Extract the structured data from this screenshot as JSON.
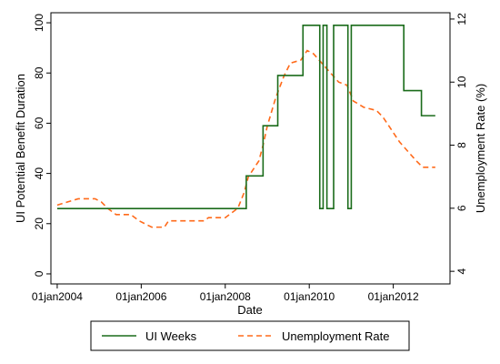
{
  "chart_data": {
    "type": "line",
    "title": "",
    "xlabel": "Date",
    "ylabel_left": "UI Potential Benefit Duration",
    "ylabel_right": "Unemployment Rate (%)",
    "x_ticks": [
      "01jan2004",
      "01jan2006",
      "01jan2008",
      "01jan2010",
      "01jan2012"
    ],
    "y_left_ticks": [
      "0",
      "20",
      "40",
      "60",
      "80",
      "100"
    ],
    "y_right_ticks": [
      "4",
      "6",
      "8",
      "10",
      "12"
    ],
    "x_range": [
      2004.0,
      2013.0
    ],
    "y_left_range": [
      0,
      100
    ],
    "y_right_range": [
      4,
      12
    ],
    "grid": false,
    "legend_position": "bottom",
    "series": [
      {
        "name": "UI Weeks",
        "axis": "left",
        "color": "#1a6b1a",
        "dash": "solid",
        "step": true,
        "points": [
          [
            2004.0,
            26
          ],
          [
            2008.5,
            26
          ],
          [
            2008.5,
            39
          ],
          [
            2008.9,
            39
          ],
          [
            2008.9,
            59
          ],
          [
            2009.25,
            59
          ],
          [
            2009.25,
            79
          ],
          [
            2009.85,
            79
          ],
          [
            2009.85,
            99
          ],
          [
            2010.25,
            99
          ],
          [
            2010.25,
            26
          ],
          [
            2010.33,
            26
          ],
          [
            2010.33,
            99
          ],
          [
            2010.42,
            99
          ],
          [
            2010.42,
            26
          ],
          [
            2010.58,
            26
          ],
          [
            2010.58,
            99
          ],
          [
            2010.92,
            99
          ],
          [
            2010.92,
            26
          ],
          [
            2011.0,
            26
          ],
          [
            2011.0,
            99
          ],
          [
            2012.25,
            99
          ],
          [
            2012.25,
            73
          ],
          [
            2012.67,
            73
          ],
          [
            2012.67,
            63
          ],
          [
            2013.0,
            63
          ]
        ]
      },
      {
        "name": "Unemployment Rate",
        "axis": "right",
        "color": "#ff6a1a",
        "dash": "dashed",
        "step": false,
        "points": [
          [
            2004.0,
            6.1
          ],
          [
            2004.25,
            6.2
          ],
          [
            2004.5,
            6.3
          ],
          [
            2004.9,
            6.3
          ],
          [
            2005.05,
            6.2
          ],
          [
            2005.2,
            6.0
          ],
          [
            2005.4,
            5.8
          ],
          [
            2005.75,
            5.8
          ],
          [
            2005.95,
            5.6
          ],
          [
            2006.25,
            5.4
          ],
          [
            2006.55,
            5.4
          ],
          [
            2006.65,
            5.6
          ],
          [
            2007.0,
            5.6
          ],
          [
            2007.5,
            5.6
          ],
          [
            2007.6,
            5.7
          ],
          [
            2008.0,
            5.7
          ],
          [
            2008.3,
            6.0
          ],
          [
            2008.45,
            6.5
          ],
          [
            2008.55,
            7.0
          ],
          [
            2008.8,
            7.5
          ],
          [
            2008.9,
            8.0
          ],
          [
            2009.0,
            8.6
          ],
          [
            2009.2,
            9.5
          ],
          [
            2009.4,
            10.2
          ],
          [
            2009.55,
            10.6
          ],
          [
            2009.8,
            10.7
          ],
          [
            2009.95,
            11.0
          ],
          [
            2010.1,
            10.9
          ],
          [
            2010.3,
            10.6
          ],
          [
            2010.5,
            10.3
          ],
          [
            2010.7,
            10.0
          ],
          [
            2010.9,
            9.9
          ],
          [
            2011.05,
            9.4
          ],
          [
            2011.3,
            9.2
          ],
          [
            2011.6,
            9.1
          ],
          [
            2011.75,
            8.9
          ],
          [
            2011.95,
            8.5
          ],
          [
            2012.15,
            8.1
          ],
          [
            2012.35,
            7.8
          ],
          [
            2012.55,
            7.5
          ],
          [
            2012.7,
            7.3
          ],
          [
            2012.85,
            7.3
          ],
          [
            2013.0,
            7.3
          ]
        ]
      }
    ]
  }
}
